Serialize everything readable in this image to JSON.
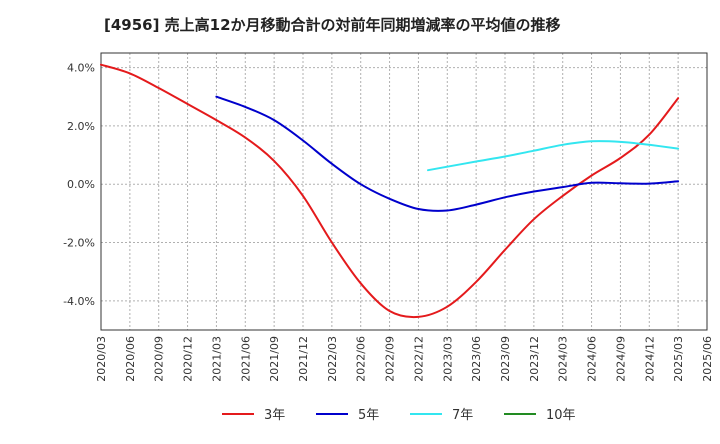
{
  "chart_data": {
    "type": "line",
    "title": "[4956]  売上高12か月移動合計の対前年同期増減率の平均値の推移",
    "xlabel": "",
    "ylabel": "",
    "ylim": [
      -5.0,
      4.5
    ],
    "yticks": [
      4.0,
      2.0,
      0.0,
      -2.0,
      -4.0
    ],
    "ytick_labels": [
      "4.0%",
      "2.0%",
      "0.0%",
      "-2.0%",
      "-4.0%"
    ],
    "x_tick_labels": [
      "2020/03",
      "2020/06",
      "2020/09",
      "2020/12",
      "2021/03",
      "2021/06",
      "2021/09",
      "2021/12",
      "2022/03",
      "2022/06",
      "2022/09",
      "2022/12",
      "2023/03",
      "2023/06",
      "2023/09",
      "2023/12",
      "2024/03",
      "2024/06",
      "2024/09",
      "2024/12",
      "2025/03",
      "2025/06"
    ],
    "grid": true,
    "legend_position": "bottom",
    "series": [
      {
        "name": "3年",
        "color": "#e41a1c",
        "points": [
          [
            "2020/03",
            4.1
          ],
          [
            "2020/06",
            3.8
          ],
          [
            "2020/09",
            3.3
          ],
          [
            "2020/12",
            2.75
          ],
          [
            "2021/03",
            2.2
          ],
          [
            "2021/06",
            1.6
          ],
          [
            "2021/09",
            0.8
          ],
          [
            "2021/12",
            -0.4
          ],
          [
            "2022/03",
            -2.0
          ],
          [
            "2022/06",
            -3.4
          ],
          [
            "2022/09",
            -4.35
          ],
          [
            "2022/12",
            -4.55
          ],
          [
            "2023/03",
            -4.2
          ],
          [
            "2023/06",
            -3.35
          ],
          [
            "2023/09",
            -2.25
          ],
          [
            "2023/12",
            -1.2
          ],
          [
            "2024/03",
            -0.4
          ],
          [
            "2024/06",
            0.3
          ],
          [
            "2024/09",
            0.9
          ],
          [
            "2024/12",
            1.7
          ],
          [
            "2025/03",
            2.95
          ]
        ]
      },
      {
        "name": "5年",
        "color": "#0000cc",
        "points": [
          [
            "2021/03",
            3.0
          ],
          [
            "2021/06",
            2.65
          ],
          [
            "2021/09",
            2.2
          ],
          [
            "2021/12",
            1.5
          ],
          [
            "2022/03",
            0.7
          ],
          [
            "2022/06",
            0.0
          ],
          [
            "2022/09",
            -0.5
          ],
          [
            "2022/12",
            -0.85
          ],
          [
            "2023/03",
            -0.9
          ],
          [
            "2023/06",
            -0.7
          ],
          [
            "2023/09",
            -0.45
          ],
          [
            "2023/12",
            -0.25
          ],
          [
            "2024/03",
            -0.1
          ],
          [
            "2024/06",
            0.05
          ],
          [
            "2024/09",
            0.03
          ],
          [
            "2024/12",
            0.02
          ],
          [
            "2025/03",
            0.1
          ]
        ]
      },
      {
        "name": "7年",
        "color": "#33e6f0",
        "points": [
          [
            "2023/01",
            0.48
          ],
          [
            "2023/03",
            0.6
          ],
          [
            "2023/06",
            0.78
          ],
          [
            "2023/09",
            0.95
          ],
          [
            "2023/12",
            1.15
          ],
          [
            "2024/03",
            1.35
          ],
          [
            "2024/06",
            1.47
          ],
          [
            "2024/09",
            1.45
          ],
          [
            "2024/12",
            1.35
          ],
          [
            "2025/03",
            1.22
          ]
        ]
      },
      {
        "name": "10年",
        "color": "#228b22",
        "points": []
      }
    ]
  }
}
